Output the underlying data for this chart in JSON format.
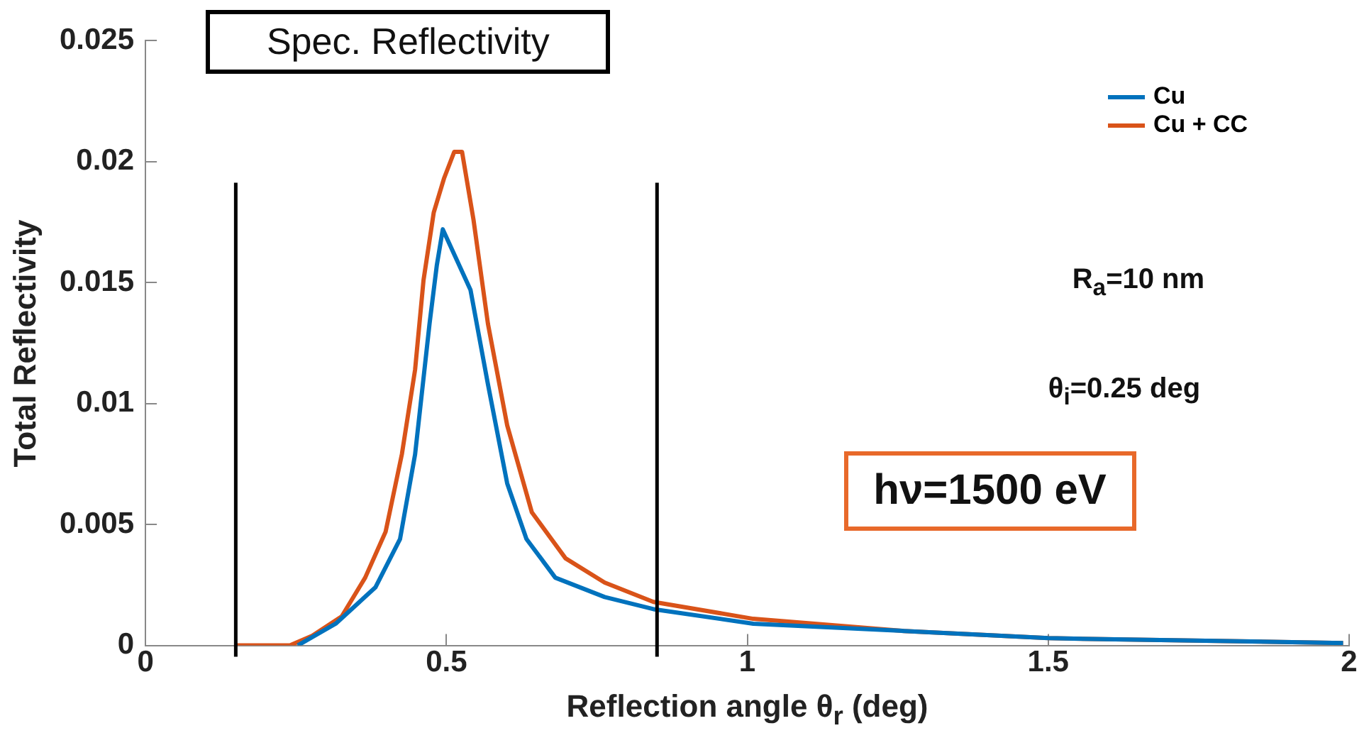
{
  "chart_data": {
    "type": "line",
    "xlabel": "Reflection angle θ$_{r}$ (deg)",
    "ylabel": "Total Reflectivity",
    "annotations": [
      "Spec. Reflectivity",
      "R$_{a}$=10 nm",
      "θ$_{i}$=0.25 deg",
      "hν=1500 eV"
    ],
    "xlim": [
      0,
      2
    ],
    "xticks": [
      0,
      0.5,
      1,
      1.5,
      2
    ],
    "ylim": [
      0,
      0.025
    ],
    "yticks": [
      0,
      0.005,
      0.01,
      0.015,
      0.02,
      0.025
    ],
    "grid": false,
    "legend": "top right",
    "marker": "none",
    "line_style": "solid",
    "ref_lines": [
      {
        "axis": "x",
        "value": 0.15,
        "color": "#000000"
      },
      {
        "axis": "x",
        "value": 0.85,
        "color": "#000000"
      }
    ],
    "series": [
      {
        "name": "Cu",
        "color": "#0072bd",
        "x": [
          0.253,
          0.316,
          0.382,
          0.423,
          0.448,
          0.472,
          0.484,
          0.494,
          0.54,
          0.569,
          0.601,
          0.633,
          0.681,
          0.763,
          0.844,
          1.01,
          1.26,
          1.5,
          1.99
        ],
        "values": [
          0,
          0.0009,
          0.0024,
          0.0044,
          0.0079,
          0.0133,
          0.0157,
          0.0172,
          0.0147,
          0.0108,
          0.0067,
          0.0044,
          0.0028,
          0.002,
          0.0015,
          0.0009,
          0.0006,
          0.0003,
          0.0001
        ]
      },
      {
        "name": "Cu + CC",
        "color": "#d95319",
        "x": [
          0.15,
          0.24,
          0.277,
          0.326,
          0.365,
          0.399,
          0.426,
          0.448,
          0.462,
          0.479,
          0.496,
          0.513,
          0.526,
          0.545,
          0.569,
          0.601,
          0.642,
          0.698,
          0.763,
          0.844,
          1.01,
          1.26,
          1.5,
          1.99
        ],
        "values": [
          0,
          0,
          0.0004,
          0.0012,
          0.0028,
          0.0047,
          0.0079,
          0.0114,
          0.0151,
          0.0179,
          0.0193,
          0.0204,
          0.0204,
          0.0176,
          0.0133,
          0.0091,
          0.0055,
          0.0036,
          0.0026,
          0.0018,
          0.0011,
          0.0006,
          0.0003,
          0.0001
        ]
      }
    ]
  }
}
